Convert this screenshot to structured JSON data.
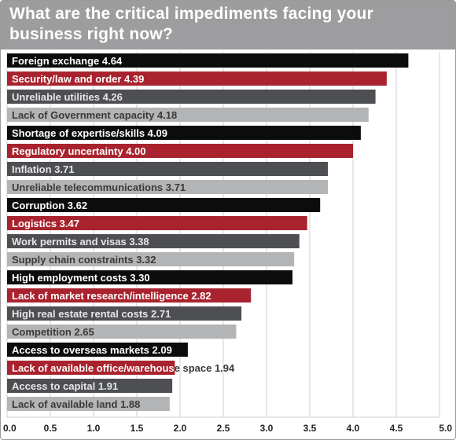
{
  "title": "What are the critical impediments facing your business right now?",
  "colors": {
    "header_bg": "#9d9d9f",
    "black": "#0c0c0c",
    "red": "#a8232e",
    "dark_gray": "#4d4f53",
    "light_gray": "#b3b4b6",
    "grid": "#cfcfcf"
  },
  "chart_data": {
    "type": "bar",
    "orientation": "horizontal",
    "title": "What are the critical impediments facing your business right now?",
    "xlim": [
      0,
      5
    ],
    "ticks": [
      "0.0",
      "0.5",
      "1.0",
      "1.5",
      "2.0",
      "2.5",
      "3.0",
      "3.5",
      "4.0",
      "4.5",
      "5.0"
    ],
    "grid": true,
    "bars": [
      {
        "label": "Foreign exchange 4.64",
        "value": 4.64,
        "color": "black"
      },
      {
        "label": "Security/law and order 4.39",
        "value": 4.39,
        "color": "red"
      },
      {
        "label": "Unreliable utilities 4.26",
        "value": 4.26,
        "color": "dark_gray"
      },
      {
        "label": "Lack of Government capacity 4.18",
        "value": 4.18,
        "color": "light_gray"
      },
      {
        "label": "Shortage of expertise/skills 4.09",
        "value": 4.09,
        "color": "black"
      },
      {
        "label": "Regulatory uncertainty 4.00",
        "value": 4.0,
        "color": "red"
      },
      {
        "label": "Inflation 3.71",
        "value": 3.71,
        "color": "dark_gray"
      },
      {
        "label": "Unreliable telecommunications 3.71",
        "value": 3.71,
        "color": "light_gray"
      },
      {
        "label": "Corruption 3.62",
        "value": 3.62,
        "color": "black"
      },
      {
        "label": "Logistics 3.47",
        "value": 3.47,
        "color": "red"
      },
      {
        "label": "Work permits and visas 3.38",
        "value": 3.38,
        "color": "dark_gray"
      },
      {
        "label": "Supply chain constraints 3.32",
        "value": 3.32,
        "color": "light_gray"
      },
      {
        "label": "High employment costs 3.30",
        "value": 3.3,
        "color": "black"
      },
      {
        "label": "Lack of market research/intelligence 2.82",
        "value": 2.82,
        "color": "red"
      },
      {
        "label": "High real estate rental costs 2.71",
        "value": 2.71,
        "color": "dark_gray"
      },
      {
        "label": "Competition 2.65",
        "value": 2.65,
        "color": "light_gray"
      },
      {
        "label": "Access to overseas markets 2.09",
        "value": 2.09,
        "color": "black"
      },
      {
        "label": "Lack of available office/warehouse space 1.94",
        "value": 1.94,
        "color": "red"
      },
      {
        "label": "Access to capital 1.91",
        "value": 1.91,
        "color": "dark_gray"
      },
      {
        "label": "Lack of available land 1.88",
        "value": 1.88,
        "color": "light_gray"
      }
    ]
  }
}
